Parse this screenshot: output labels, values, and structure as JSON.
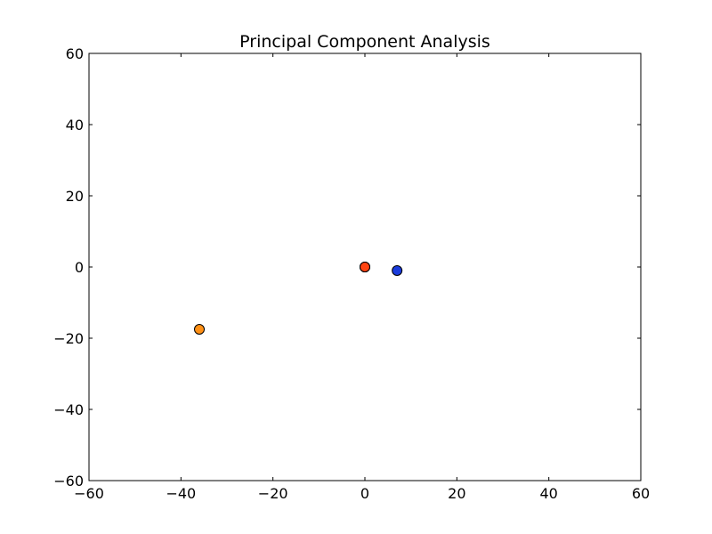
{
  "chart_data": {
    "type": "scatter",
    "title": "Principal Component Analysis",
    "xlabel": "",
    "ylabel": "",
    "xlim": [
      -60,
      60
    ],
    "ylim": [
      -60,
      60
    ],
    "xticks": [
      -60,
      -40,
      -20,
      0,
      20,
      40,
      60
    ],
    "yticks": [
      -60,
      -40,
      -20,
      0,
      20,
      40,
      60
    ],
    "xtick_labels": [
      "−60",
      "−40",
      "−20",
      "0",
      "20",
      "40",
      "60"
    ],
    "ytick_labels": [
      "−60",
      "−40",
      "−20",
      "0",
      "20",
      "40",
      "60"
    ],
    "grid": false,
    "points": [
      {
        "x": -36,
        "y": -17.5,
        "color": "#ff9016"
      },
      {
        "x": 7,
        "y": -1,
        "color": "#1a3cdc"
      },
      {
        "x": 0,
        "y": 0,
        "color": "#ff3a10"
      },
      {
        "x": 0,
        "y": 0,
        "color": "#ff5a12"
      },
      {
        "x": 0,
        "y": 0,
        "color": "#ff4411"
      }
    ]
  }
}
